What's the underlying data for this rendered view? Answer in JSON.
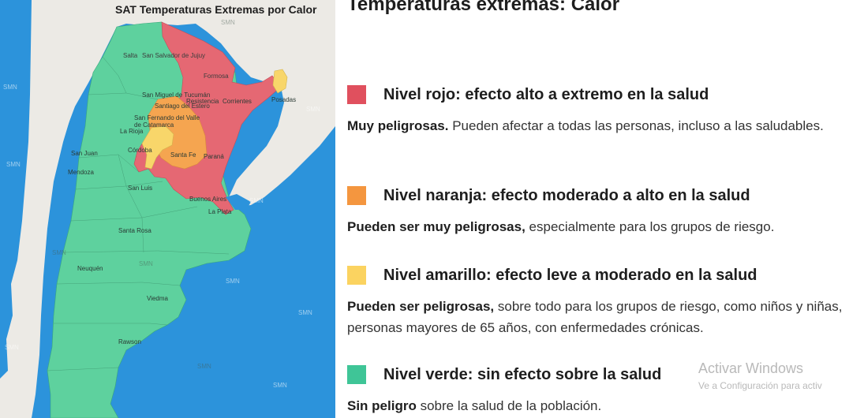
{
  "map": {
    "title": "SAT Temperaturas Extremas por Calor",
    "watermark_label": "SMN",
    "cities": [
      "Salta",
      "San Salvador de Jujuy",
      "Formosa",
      "San Miguel de Tucumán",
      "Resistencia",
      "Corrientes",
      "Posadas",
      "Santiago del Estero",
      "San Fernando del Valle de Catamarca",
      "La Rioja",
      "Córdoba",
      "Santa Fe",
      "Paraná",
      "San Juan",
      "Mendoza",
      "San Luis",
      "Buenos Aires",
      "La Plata",
      "Santa Rosa",
      "Neuquén",
      "Viedma",
      "Rawson"
    ],
    "colors": {
      "red": "#e56873",
      "orange": "#f5a550",
      "yellow": "#f8d66a",
      "green": "#5ed19e",
      "ocean": "#2c93db",
      "land": "#eceae5"
    }
  },
  "legend": {
    "title": "Temperaturas extremas: Calor",
    "levels": [
      {
        "color": "#e0505e",
        "title": "Nivel rojo: efecto alto a extremo en la salud",
        "desc_bold": "Muy peligrosas.",
        "desc_rest": " Pueden afectar a todas las personas, incluso a las saludables."
      },
      {
        "color": "#f4963f",
        "title": "Nivel naranja: efecto moderado a alto en la salud",
        "desc_bold": "Pueden ser muy peligrosas,",
        "desc_rest": " especialmente para los grupos de riesgo."
      },
      {
        "color": "#fbd360",
        "title": "Nivel amarillo: efecto leve a moderado en la salud",
        "desc_bold": "Pueden ser peligrosas,",
        "desc_rest": " sobre todo para los grupos de riesgo, como niños y niñas, personas mayores de 65 años, con enfermedades crónicas."
      },
      {
        "color": "#3fc597",
        "title": "Nivel verde: sin efecto sobre la salud",
        "desc_bold": "Sin peligro",
        "desc_rest": " sobre la salud de la población."
      }
    ]
  },
  "os_watermark": {
    "line1": "Activar Windows",
    "line2": "Ve a Configuración para activ"
  }
}
